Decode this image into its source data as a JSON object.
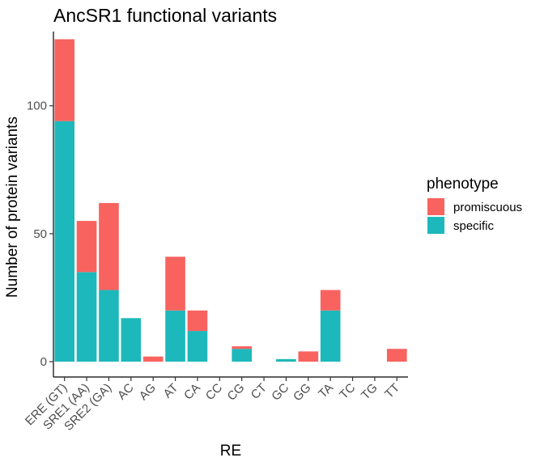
{
  "chart_data": {
    "type": "bar",
    "stacked": true,
    "title": "AncSR1 functional variants",
    "xlabel": "RE",
    "ylabel": "Number of protein variants",
    "categories": [
      "ERE (GT)",
      "SRE1 (AA)",
      "SRE2 (GA)",
      "AC",
      "AG",
      "AT",
      "CA",
      "CC",
      "CG",
      "CT",
      "GC",
      "GG",
      "TA",
      "TC",
      "TG",
      "TT"
    ],
    "yticks": [
      0,
      50,
      100
    ],
    "ylim": [
      -6,
      129
    ],
    "grid": false,
    "legend": {
      "title": "phenotype",
      "position": "right"
    },
    "series": [
      {
        "name": "specific",
        "color": "#1DB8BB",
        "values": [
          94,
          35,
          28,
          17,
          0,
          20,
          12,
          0,
          5,
          0,
          1,
          0,
          20,
          0,
          0,
          0
        ]
      },
      {
        "name": "promiscuous",
        "color": "#F8635F",
        "values": [
          32,
          20,
          34,
          0,
          2,
          21,
          8,
          0,
          1,
          0,
          0,
          4,
          8,
          0,
          0,
          5
        ]
      }
    ],
    "legend_order": [
      "promiscuous",
      "specific"
    ]
  }
}
